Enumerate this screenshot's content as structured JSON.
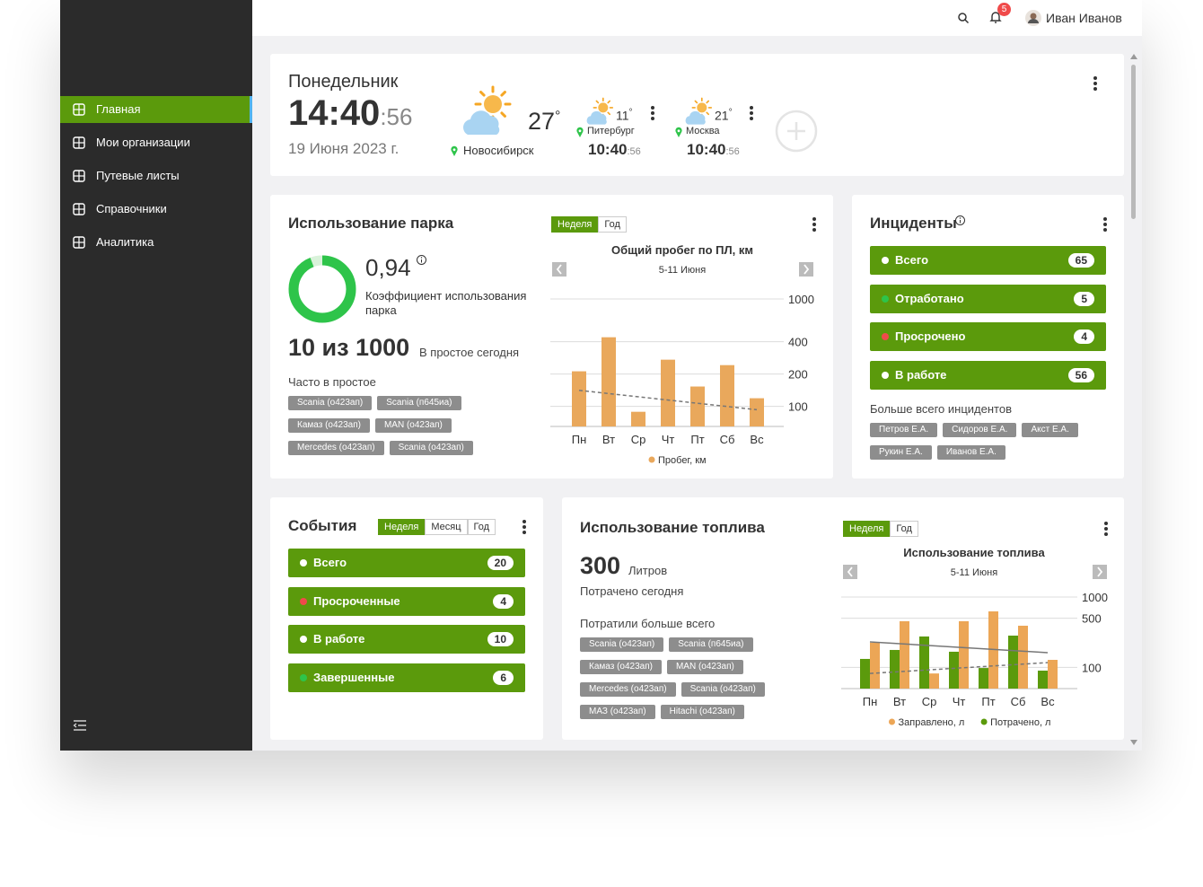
{
  "header": {
    "notifications": 5,
    "user": "Иван Иванов"
  },
  "sidebar": {
    "items": [
      "Главная",
      "Мои организации",
      "Путевые листы",
      "Справочники",
      "Аналитика"
    ],
    "active": 0
  },
  "clock": {
    "day": "Понедельник",
    "time": "14:40",
    "seconds": ":56",
    "date": "19 Июня 2023 г.",
    "degree": "°",
    "main": {
      "temp": 27,
      "city": "Новосибирск"
    },
    "cities": [
      {
        "temp": 11,
        "city": "Питербург",
        "time": "10:40",
        "seconds": ":56"
      },
      {
        "temp": 21,
        "city": "Москва",
        "time": "10:40",
        "seconds": ":56"
      }
    ]
  },
  "fleet": {
    "title": "Использование парка",
    "ratio": 0.94,
    "ratio_label": "0,94",
    "ratio_caption": "Коэффициент использования парка",
    "summary": "10 из 1000",
    "summary_note": "В простое сегодня",
    "idle_title": "Часто в простое",
    "idle_tags": [
      "Scania (о423ап)",
      "Scania (п645иа)",
      "Камаз (о423ап)",
      "MAN (о423ап)",
      "Mercedes (о423ап)",
      "Scania (о423ап)"
    ],
    "tabs": [
      "Неделя",
      "Год"
    ],
    "active_tab": 0
  },
  "incidents": {
    "title": "Инциденты",
    "items": [
      {
        "label": "Всего",
        "count": 65,
        "dot": "#ffffff"
      },
      {
        "label": "Отработано",
        "count": 5,
        "dot": "#2ec44a"
      },
      {
        "label": "Просрочено",
        "count": 4,
        "dot": "#f04a4a"
      },
      {
        "label": "В работе",
        "count": 56,
        "dot": "#ffffff"
      }
    ],
    "top_title": "Больше всего инцидентов",
    "top_tags": [
      "Петров Е.А.",
      "Сидоров Е.А.",
      "Акст Е.А.",
      "Рукин Е.А.",
      "Иванов Е.А."
    ]
  },
  "events": {
    "title": "События",
    "tabs": [
      "Неделя",
      "Месяц",
      "Год"
    ],
    "active_tab": 0,
    "items": [
      {
        "label": "Всего",
        "count": 20,
        "dot": "#ffffff"
      },
      {
        "label": "Просроченные",
        "count": 4,
        "dot": "#f04a4a"
      },
      {
        "label": "В работе",
        "count": 10,
        "dot": "#ffffff"
      },
      {
        "label": "Завершенные",
        "count": 6,
        "dot": "#2ec44a"
      }
    ]
  },
  "fuel": {
    "title": "Использование топлива",
    "amount": 300,
    "unit": "Литров",
    "note": "Потрачено сегодня",
    "top_title": "Потратили больше всего",
    "top_tags": [
      "Scania (о423ап)",
      "Scania (п645иа)",
      "Камаз (о423ап)",
      "MAN (о423ап)",
      "Mercedes (о423ап)",
      "Scania (о423ап)",
      "МАЗ (о423ап)",
      "Hitachi (о423ап)"
    ],
    "tabs": [
      "Неделя",
      "Год"
    ],
    "active_tab": 0
  },
  "chart_data": [
    {
      "type": "bar",
      "title": "Общий пробег по ПЛ, км",
      "subtitle": "5-11 Июня",
      "categories": [
        "Пн",
        "Вт",
        "Ср",
        "Чт",
        "Пт",
        "Сб",
        "Вс"
      ],
      "series": [
        {
          "name": "Пробег, км",
          "color": "#e9a85c",
          "values": [
            212,
            440,
            89,
            272,
            153,
            242,
            119
          ],
          "trend": [
            141,
            93
          ],
          "trend_style": "dashed"
        }
      ],
      "ylim": [
        65,
        1000
      ],
      "yticks": [
        100,
        200,
        400,
        1000
      ],
      "log_scale": true,
      "grid": true
    },
    {
      "type": "bar",
      "title": "Использование топлива",
      "subtitle": "5-11 Июня",
      "categories": [
        "Пн",
        "Вт",
        "Ср",
        "Чт",
        "Пт",
        "Сб",
        "Вс"
      ],
      "series": [
        {
          "name": "Заправлено, л",
          "color": "#eca656",
          "values": [
            224,
            453,
            82,
            453,
            625,
            391,
            128
          ],
          "trend": [
            230,
            162
          ],
          "trend_style": "solid"
        },
        {
          "name": "Потрачено, л",
          "color": "#5b9a0c",
          "values": [
            132,
            177,
            275,
            167,
            98,
            283,
            90
          ],
          "trend": [
            82,
            117
          ],
          "trend_style": "dashed"
        }
      ],
      "ylim": [
        50,
        1000
      ],
      "yticks": [
        100,
        500,
        1000
      ],
      "log_scale": true,
      "grid": true
    }
  ]
}
